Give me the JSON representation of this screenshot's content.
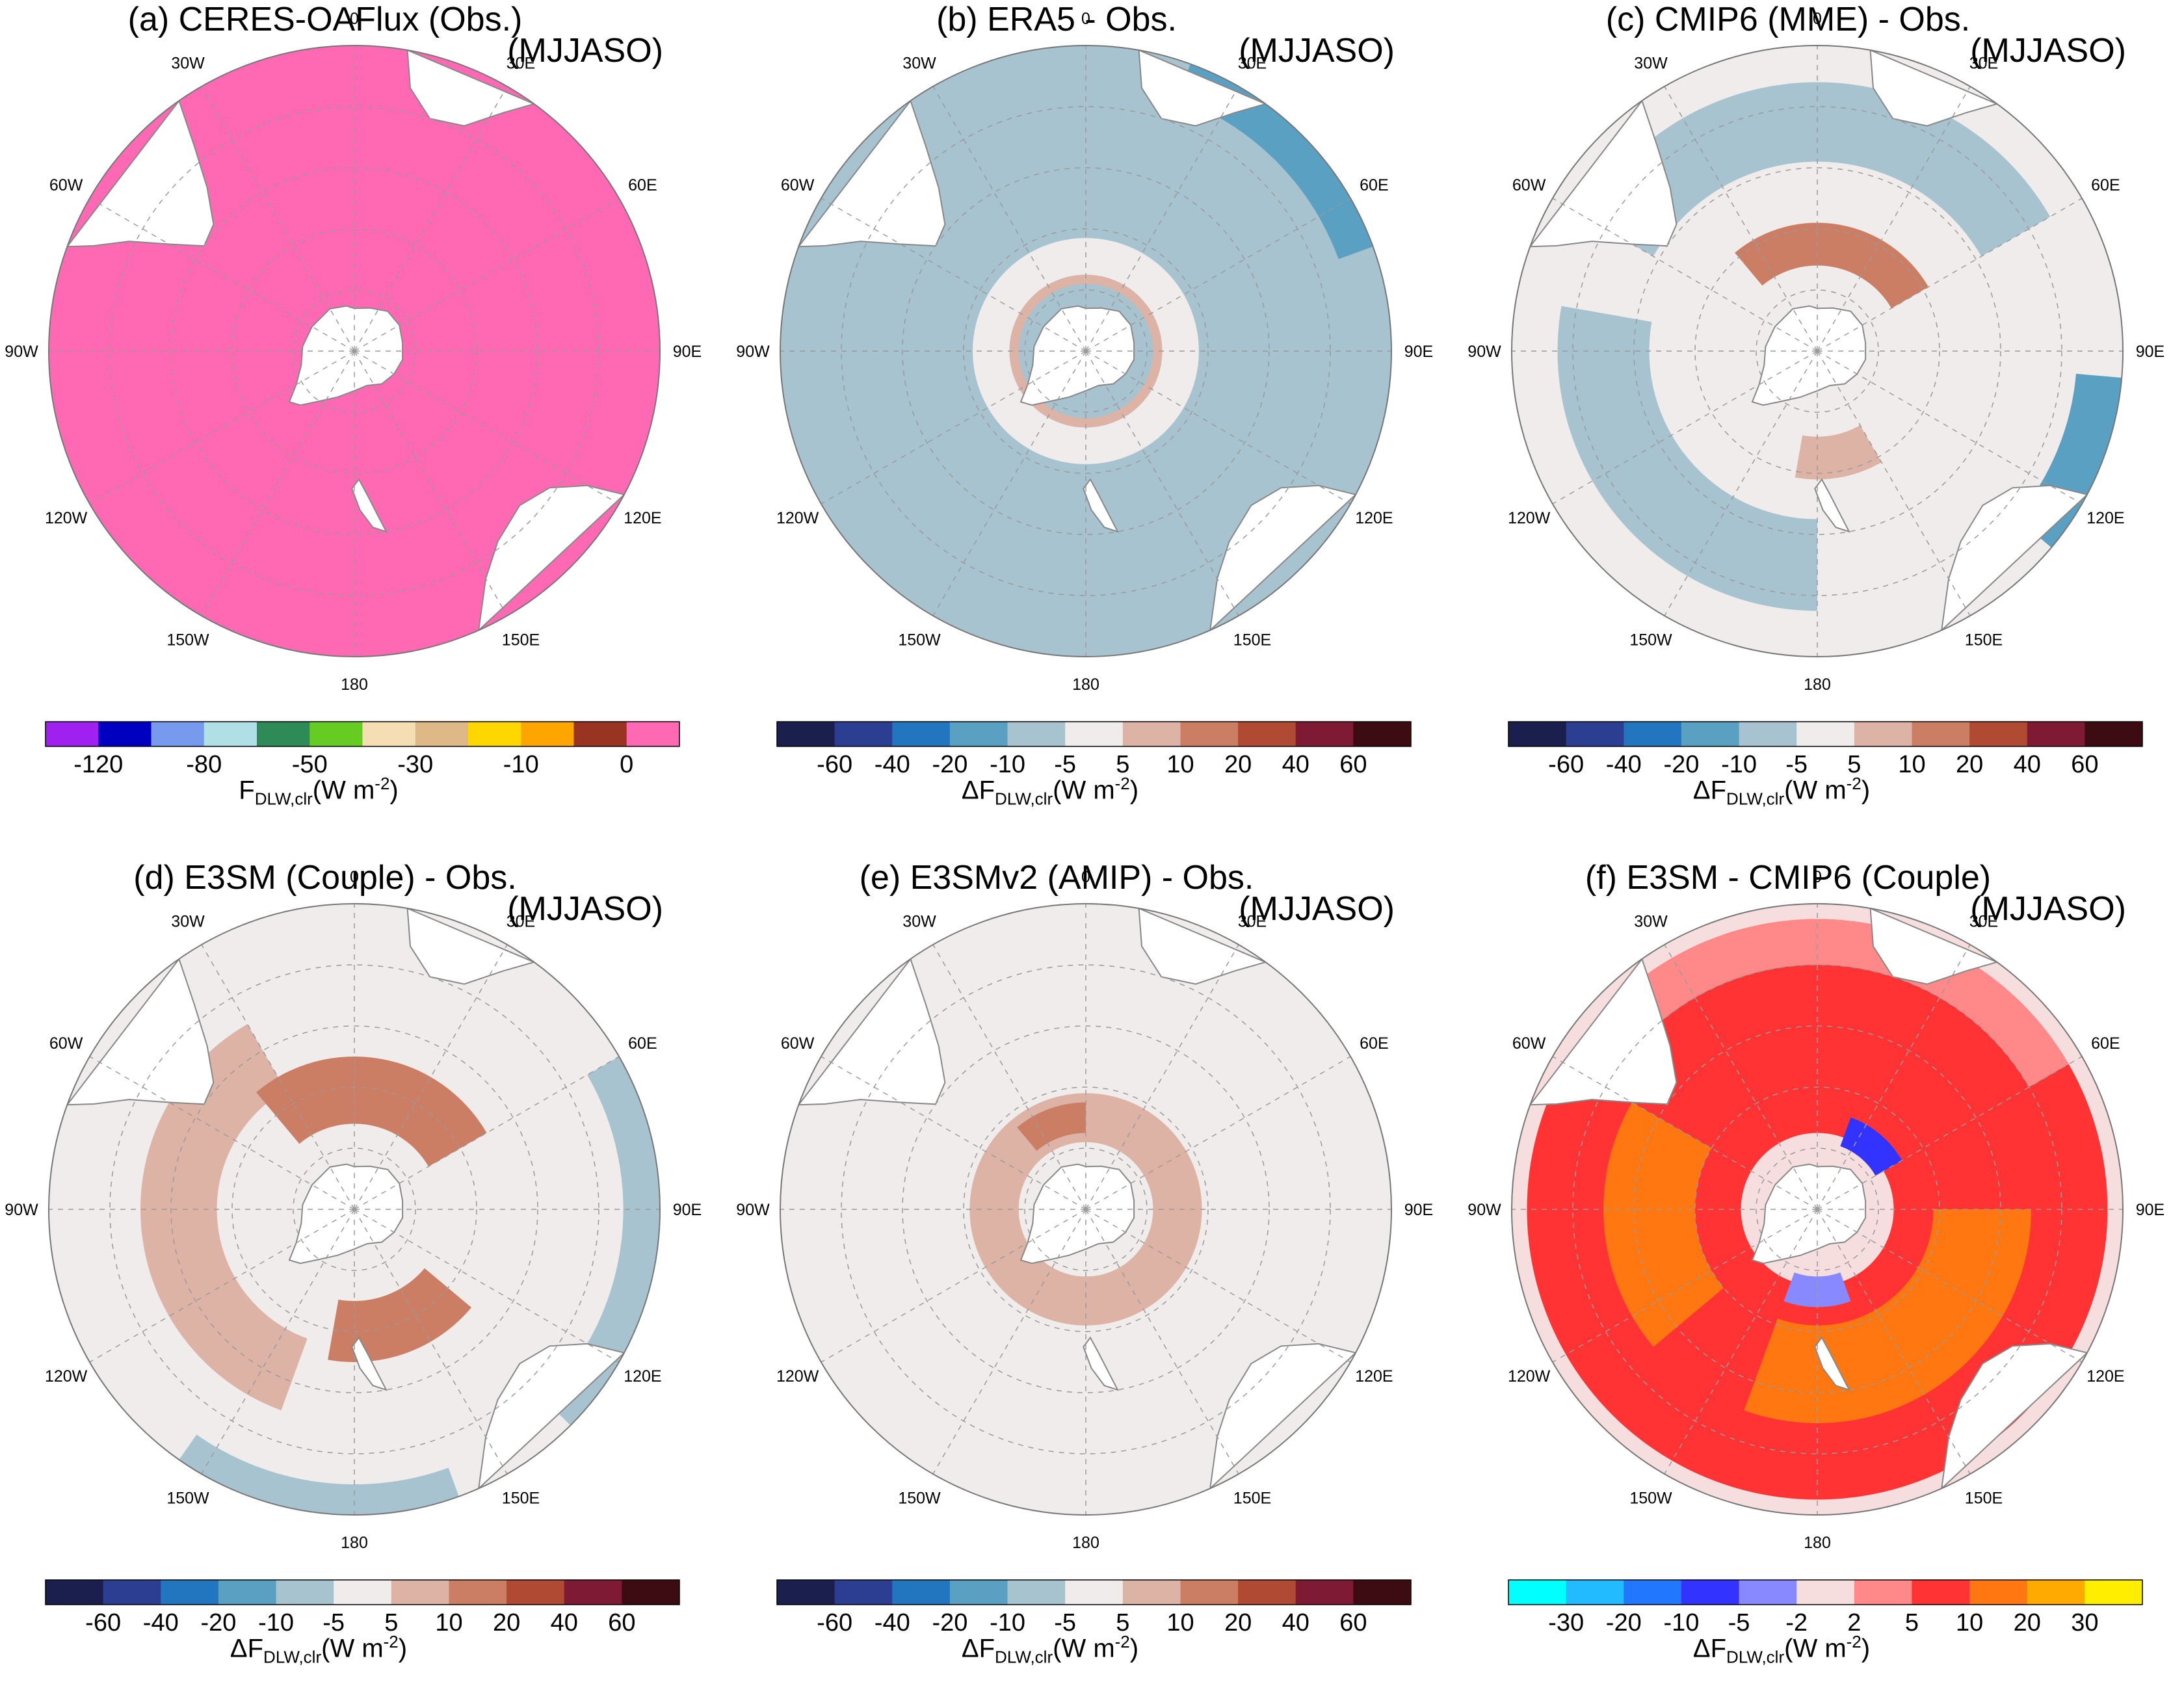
{
  "colors": {
    "land": "#ffffff",
    "coast": "#888888",
    "grid": "#9a9a9a"
  },
  "lon_labels": [
    "0",
    "30E",
    "60E",
    "90E",
    "120E",
    "150E",
    "180",
    "150W",
    "120W",
    "90W",
    "60W",
    "30W"
  ],
  "colorbars": {
    "abs": {
      "colors": [
        "#a020f0",
        "#0000c0",
        "#7799ee",
        "#b0e0e6",
        "#2e8b57",
        "#66cc22",
        "#f5deb3",
        "#deb887",
        "#ffd700",
        "#ffa500",
        "#993322",
        "#ff69b4"
      ],
      "ticks": [
        "-120",
        "-80",
        "-50",
        "-30",
        "-10",
        "0"
      ],
      "label_base": "F",
      "label_sub": "DLW,clr",
      "label_unit": "(W m",
      "label_sup": "-2",
      "label_end": ")"
    },
    "diff": {
      "colors": [
        "#1a1f4d",
        "#2c3e91",
        "#2176bf",
        "#5aa0c2",
        "#a7c3cf",
        "#efeceb",
        "#ddb3a5",
        "#cc7e64",
        "#b14a32",
        "#7f1a35",
        "#3d0c12"
      ],
      "ticks": [
        "-60",
        "-40",
        "-20",
        "-10",
        "-5",
        "5",
        "10",
        "20",
        "40",
        "60"
      ],
      "label_base": "ΔF",
      "label_sub": "DLW,clr",
      "label_unit": "(W m",
      "label_sup": "-2",
      "label_end": ")"
    },
    "e3sm": {
      "colors": [
        "#00ffff",
        "#22bbff",
        "#2277ff",
        "#3333ff",
        "#8888ff",
        "#f7dede",
        "#ff8888",
        "#ff3333",
        "#ff7711",
        "#ffaa00",
        "#ffee00"
      ],
      "ticks": [
        "-30",
        "-20",
        "-10",
        "-5",
        "-2",
        "2",
        "5",
        "10",
        "20",
        "30"
      ],
      "label_base": "ΔF",
      "label_sub": "DLW,clr",
      "label_unit": "(W m",
      "label_sup": "-2",
      "label_end": ")"
    }
  },
  "panels": [
    {
      "id": "a",
      "title": "(a) CERES-OAFlux (Obs.)",
      "season": "(MJJASO)",
      "bar": "abs",
      "ocean": "#ff69b4",
      "ocean_patches": []
    },
    {
      "id": "b",
      "title": "(b) ERA5 - Obs.",
      "season": "(MJJASO)",
      "bar": "diff",
      "ocean": "#a7c3cf",
      "ocean_patches": [
        {
          "kind": "ring",
          "ri": 0.25,
          "ro": 0.37,
          "color": "#efeceb"
        },
        {
          "kind": "arc",
          "a0": 20,
          "a1": 70,
          "ri": 0.88,
          "ro": 1.0,
          "color": "#5aa0c2"
        },
        {
          "kind": "ring",
          "ri": 0.22,
          "ro": 0.25,
          "color": "#ddb3a5"
        }
      ]
    },
    {
      "id": "c",
      "title": "(c) CMIP6 (MME) - Obs.",
      "season": "(MJJASO)",
      "bar": "diff",
      "ocean": "#efeceb",
      "ocean_patches": [
        {
          "kind": "arc",
          "a0": 300,
          "a1": 420,
          "ri": 0.62,
          "ro": 0.88,
          "color": "#a7c3cf"
        },
        {
          "kind": "arc",
          "a0": 180,
          "a1": 280,
          "ri": 0.55,
          "ro": 0.85,
          "color": "#a7c3cf"
        },
        {
          "kind": "arc",
          "a0": 95,
          "a1": 130,
          "ri": 0.85,
          "ro": 1.0,
          "color": "#5aa0c2"
        },
        {
          "kind": "arc",
          "a0": 320,
          "a1": 420,
          "ri": 0.28,
          "ro": 0.42,
          "color": "#cc7e64"
        },
        {
          "kind": "arc",
          "a0": 150,
          "a1": 190,
          "ri": 0.28,
          "ro": 0.42,
          "color": "#ddb3a5"
        }
      ]
    },
    {
      "id": "d",
      "title": "(d) E3SM (Couple) - Obs.",
      "season": "(MJJASO)",
      "bar": "diff",
      "ocean": "#efeceb",
      "ocean_patches": [
        {
          "kind": "arc",
          "a0": 60,
          "a1": 135,
          "ri": 0.88,
          "ro": 1.0,
          "color": "#a7c3cf"
        },
        {
          "kind": "arc",
          "a0": 160,
          "a1": 215,
          "ri": 0.9,
          "ro": 1.0,
          "color": "#a7c3cf"
        },
        {
          "kind": "arc",
          "a0": 200,
          "a1": 330,
          "ri": 0.45,
          "ro": 0.7,
          "color": "#ddb3a5"
        },
        {
          "kind": "arc",
          "a0": 320,
          "a1": 420,
          "ri": 0.28,
          "ro": 0.5,
          "color": "#cc7e64"
        },
        {
          "kind": "arc",
          "a0": 130,
          "a1": 190,
          "ri": 0.3,
          "ro": 0.5,
          "color": "#cc7e64"
        }
      ]
    },
    {
      "id": "e",
      "title": "(e) E3SMv2 (AMIP) - Obs.",
      "season": "(MJJASO)",
      "bar": "diff",
      "ocean": "#efeceb",
      "ocean_patches": [
        {
          "kind": "ring",
          "ri": 0.22,
          "ro": 0.38,
          "color": "#ddb3a5"
        },
        {
          "kind": "arc",
          "a0": 320,
          "a1": 360,
          "ri": 0.25,
          "ro": 0.35,
          "color": "#cc7e64"
        }
      ]
    },
    {
      "id": "f",
      "title": "(f) E3SM - CMIP6 (Couple)",
      "season": "(MJJASO)",
      "bar": "e3sm",
      "ocean": "#f7dede",
      "ocean_patches": [
        {
          "kind": "ring",
          "ri": 0.25,
          "ro": 0.95,
          "color": "#ff3333"
        },
        {
          "kind": "arc",
          "a0": 90,
          "a1": 200,
          "ri": 0.38,
          "ro": 0.7,
          "color": "#ff7711"
        },
        {
          "kind": "arc",
          "a0": 230,
          "a1": 300,
          "ri": 0.4,
          "ro": 0.7,
          "color": "#ff7711"
        },
        {
          "kind": "arc",
          "a0": 300,
          "a1": 420,
          "ri": 0.8,
          "ro": 0.95,
          "color": "#ff8888"
        },
        {
          "kind": "arc",
          "a0": 160,
          "a1": 200,
          "ri": 0.22,
          "ro": 0.32,
          "color": "#8888ff"
        },
        {
          "kind": "arc",
          "a0": 20,
          "a1": 60,
          "ri": 0.22,
          "ro": 0.32,
          "color": "#3333ff"
        }
      ]
    }
  ]
}
